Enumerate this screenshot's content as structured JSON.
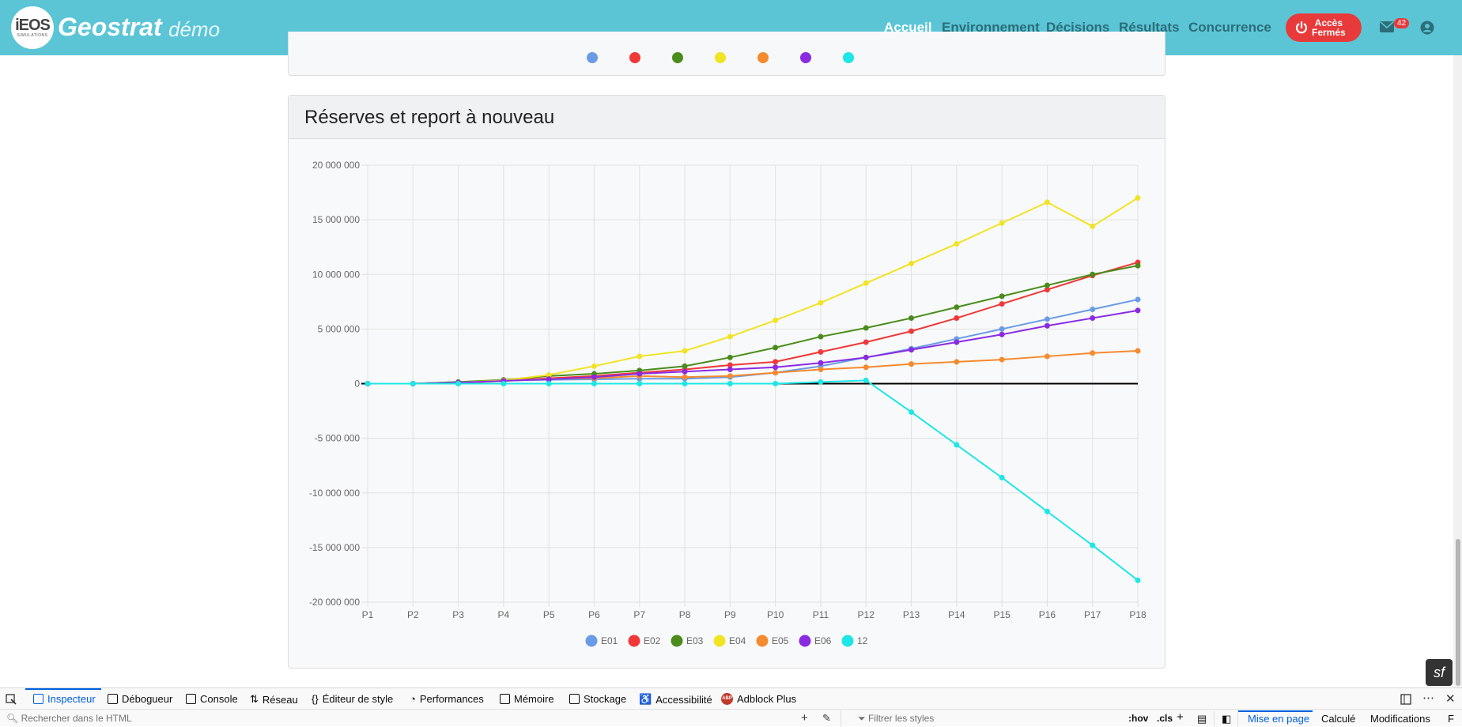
{
  "header": {
    "logo_main": "iEOS",
    "logo_sub": "SIMULATIONS",
    "brand": "Geostrat",
    "brand_sub": "démo",
    "nav": [
      "Accueil",
      "Environnement",
      "Décisions",
      "Résultats",
      "Concurrence"
    ],
    "active_nav": "Accueil",
    "access_button": "Accès\nFermés",
    "access_line1": "Accès",
    "access_line2": "Fermés",
    "mail_count": "42",
    "colors": {
      "navbar": "#5bc5d6",
      "accent": "#e83a3a"
    }
  },
  "card": {
    "title": "Réserves et report à nouveau"
  },
  "chart_data": {
    "type": "line",
    "title": "",
    "xlabel": "",
    "ylabel": "",
    "x": [
      "P1",
      "P2",
      "P3",
      "P4",
      "P5",
      "P6",
      "P7",
      "P8",
      "P9",
      "P10",
      "P11",
      "P12",
      "P13",
      "P14",
      "P15",
      "P16",
      "P17",
      "P18"
    ],
    "ylim": [
      -20000000,
      20000000
    ],
    "yticks": [
      -20000000,
      -15000000,
      -10000000,
      -5000000,
      0,
      5000000,
      10000000,
      15000000,
      20000000
    ],
    "ytick_labels": [
      "-20 000 000",
      "-15 000 000",
      "-10 000 000",
      "-5 000 000",
      "0",
      "5 000 000",
      "10 000 000",
      "15 000 000",
      "20 000 000"
    ],
    "grid": true,
    "legend_position": "bottom",
    "series": [
      {
        "name": "E01",
        "color": "#6a9be6",
        "values": [
          0,
          0,
          150000,
          300000,
          350000,
          400000,
          450000,
          450000,
          600000,
          1000000,
          1600000,
          2400000,
          3200000,
          4100000,
          5000000,
          5900000,
          6800000,
          7700000
        ]
      },
      {
        "name": "E02",
        "color": "#f03838",
        "values": [
          0,
          0,
          100000,
          300000,
          500000,
          700000,
          1000000,
          1300000,
          1700000,
          2000000,
          2900000,
          3800000,
          4800000,
          6000000,
          7300000,
          8600000,
          9900000,
          11100000
        ]
      },
      {
        "name": "E03",
        "color": "#4a8c1c",
        "values": [
          0,
          0,
          150000,
          350000,
          700000,
          900000,
          1200000,
          1600000,
          2400000,
          3300000,
          4300000,
          5100000,
          6000000,
          7000000,
          8000000,
          9000000,
          10000000,
          10800000
        ]
      },
      {
        "name": "E04",
        "color": "#f0e424",
        "values": [
          0,
          0,
          100000,
          300000,
          800000,
          1600000,
          2500000,
          3000000,
          4300000,
          5800000,
          7400000,
          9200000,
          11000000,
          12800000,
          14700000,
          16600000,
          14400000,
          17000000
        ]
      },
      {
        "name": "E05",
        "color": "#f58a2e",
        "values": [
          0,
          0,
          50000,
          250000,
          450000,
          500000,
          700000,
          600000,
          700000,
          1000000,
          1300000,
          1500000,
          1800000,
          2000000,
          2200000,
          2500000,
          2800000,
          3000000
        ]
      },
      {
        "name": "E06",
        "color": "#8a2be2",
        "values": [
          0,
          0,
          100000,
          250000,
          400000,
          600000,
          900000,
          1100000,
          1300000,
          1500000,
          1900000,
          2400000,
          3100000,
          3800000,
          4500000,
          5300000,
          6000000,
          6700000
        ]
      },
      {
        "name": "12",
        "color": "#1ee6e6",
        "values": [
          0,
          0,
          0,
          0,
          0,
          0,
          0,
          0,
          0,
          0,
          150000,
          300000,
          -2600000,
          -5600000,
          -8600000,
          -11700000,
          -14800000,
          -18000000
        ]
      }
    ]
  },
  "devtools": {
    "tabs": [
      "Inspecteur",
      "Débogueur",
      "Console",
      "Réseau",
      "Éditeur de style",
      "Performances",
      "Mémoire",
      "Stockage",
      "Accessibilité",
      "Adblock Plus"
    ],
    "active_tab": "Inspecteur",
    "search_placeholder": "Rechercher dans le HTML",
    "filter_placeholder": "Filtrer les styles",
    "hov": ":hov",
    "cls": ".cls",
    "right_tabs": [
      "Mise en page",
      "Calculé",
      "Modifications",
      "F"
    ],
    "active_right_tab": "Mise en page"
  },
  "symfony_badge": "sf"
}
